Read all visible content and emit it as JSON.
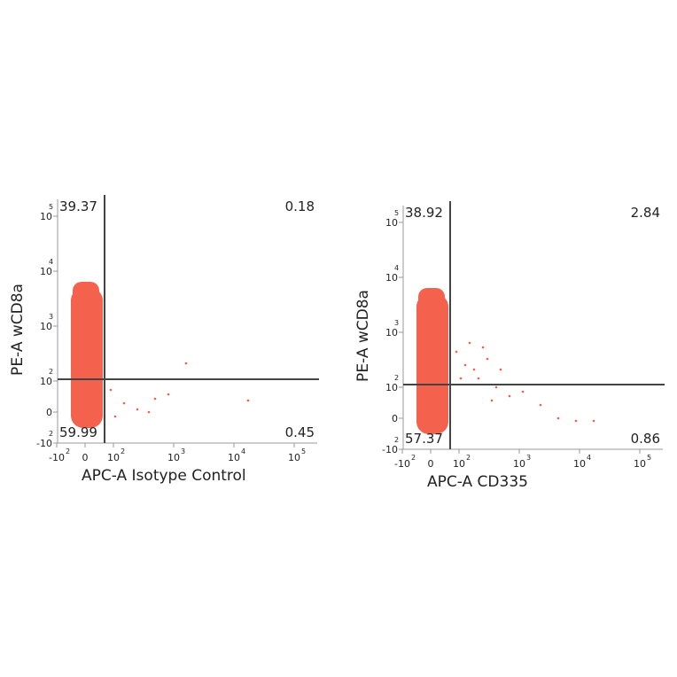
{
  "chart_data": [
    {
      "type": "scatter",
      "x_label": "APC-A Isotype Control",
      "y_label": "PE-A wCD8a",
      "quadrants": {
        "upper_left": 39.37,
        "upper_right": 0.18,
        "lower_left": 59.99,
        "lower_right": 0.45
      },
      "xticks": [
        {
          "value": -100,
          "label": "-10",
          "exponent": "2"
        },
        0,
        {
          "value": 100,
          "label": "10",
          "exponent": "2"
        },
        {
          "value": 1000,
          "label": "10",
          "exponent": "3"
        },
        {
          "value": 10000,
          "label": "10",
          "exponent": "4"
        },
        {
          "value": 100000,
          "label": "10",
          "exponent": "5"
        }
      ],
      "yticks": [
        {
          "value": -100,
          "label": "-10",
          "exponent": "2"
        },
        0,
        {
          "value": 100,
          "label": "10",
          "exponent": "2"
        },
        {
          "value": 1000,
          "label": "10",
          "exponent": "3"
        },
        {
          "value": 10000,
          "label": "10",
          "exponent": "4"
        },
        {
          "value": 100000,
          "label": "10",
          "exponent": "5"
        }
      ],
      "color": "#f4614d"
    },
    {
      "type": "scatter",
      "x_label": "APC-A CD335",
      "y_label": "PE-A wCD8a",
      "quadrants": {
        "upper_left": 38.92,
        "upper_right": 2.84,
        "lower_left": 57.37,
        "lower_right": 0.86
      },
      "xticks": [
        {
          "value": -100,
          "label": "-10",
          "exponent": "2"
        },
        0,
        {
          "value": 100,
          "label": "10",
          "exponent": "2"
        },
        {
          "value": 1000,
          "label": "10",
          "exponent": "3"
        },
        {
          "value": 10000,
          "label": "10",
          "exponent": "4"
        },
        {
          "value": 100000,
          "label": "10",
          "exponent": "5"
        }
      ],
      "yticks": [
        {
          "value": -100,
          "label": "-10",
          "exponent": "2"
        },
        0,
        {
          "value": 100,
          "label": "10",
          "exponent": "2"
        },
        {
          "value": 1000,
          "label": "10",
          "exponent": "3"
        },
        {
          "value": 10000,
          "label": "10",
          "exponent": "4"
        },
        {
          "value": 100000,
          "label": "10",
          "exponent": "5"
        }
      ],
      "color": "#f4614d"
    }
  ]
}
